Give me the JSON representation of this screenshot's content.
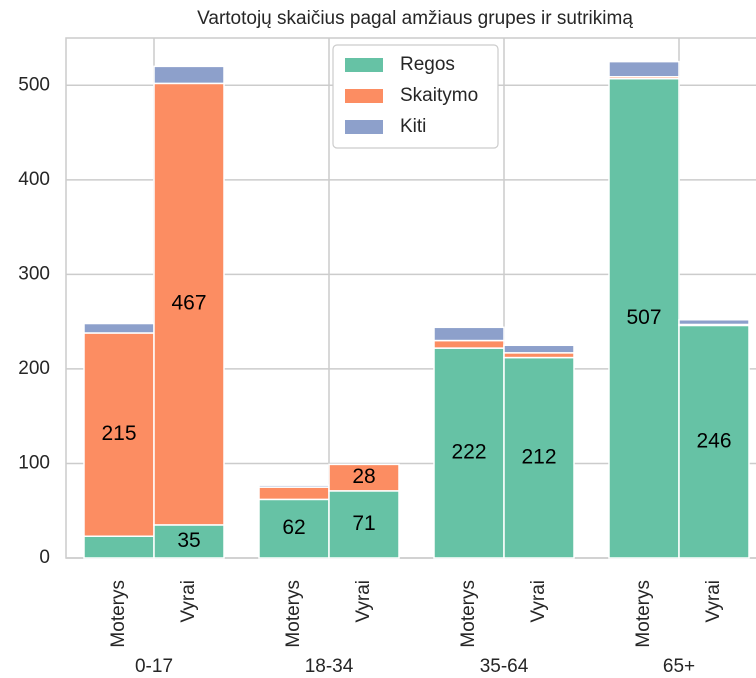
{
  "chart_data": {
    "type": "stacked_bar",
    "title": "Vartotojų skaičius pagal amžiaus grupes ir sutrikimą",
    "groups": [
      "0-17",
      "18-34",
      "35-64",
      "65+"
    ],
    "subcategories": [
      "Moterys",
      "Vyrai"
    ],
    "series": [
      {
        "name": "Regos",
        "color": "#66c2a5",
        "values": [
          23,
          35,
          62,
          71,
          222,
          212,
          507,
          246
        ],
        "value_labels": [
          null,
          "35",
          "62",
          "71",
          "222",
          "212",
          "507",
          "246"
        ]
      },
      {
        "name": "Skaitymo",
        "color": "#fc8d62",
        "values": [
          215,
          467,
          13,
          28,
          8,
          5,
          2,
          1
        ],
        "value_labels": [
          "215",
          "467",
          null,
          "28",
          null,
          null,
          null,
          null
        ]
      },
      {
        "name": "Kiti",
        "color": "#8da0cb",
        "values": [
          10,
          18,
          2,
          0,
          14,
          8,
          16,
          5
        ],
        "value_labels": [
          null,
          null,
          null,
          null,
          null,
          null,
          null,
          null
        ]
      }
    ],
    "ylim": [
      0,
      550
    ],
    "yticks": [
      0,
      100,
      200,
      300,
      400,
      500
    ],
    "grid": true,
    "legend": "upper center"
  }
}
